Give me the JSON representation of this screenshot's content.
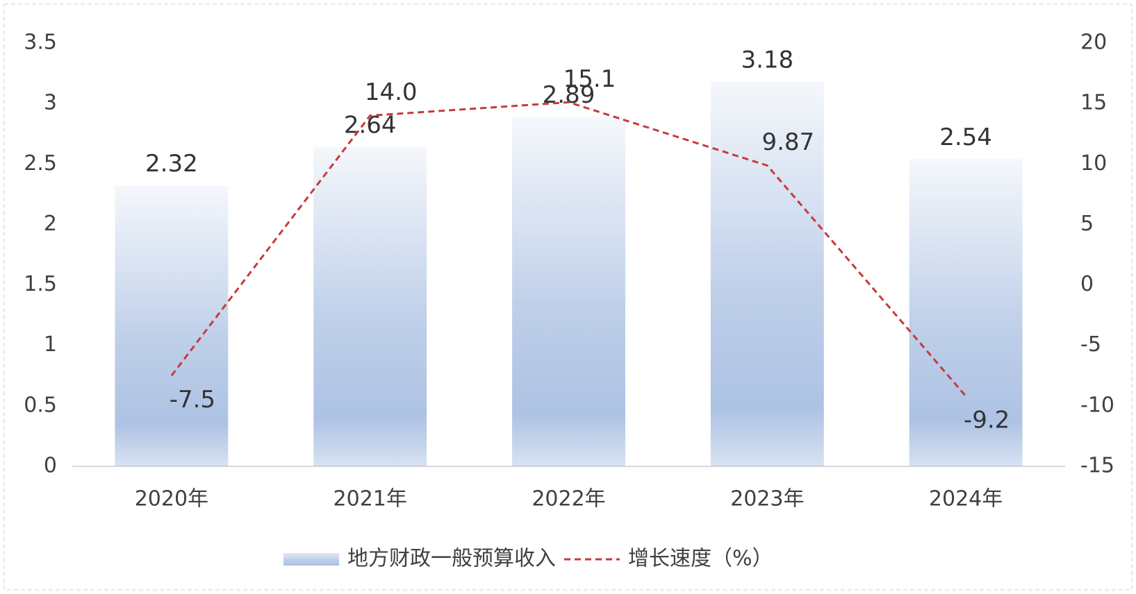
{
  "chart_data": {
    "type": "bar",
    "categories": [
      "2020年",
      "2021年",
      "2022年",
      "2023年",
      "2024年"
    ],
    "series": [
      {
        "name": "地方财政一般预算收入",
        "type": "bar",
        "color": "#a9bfe2",
        "values": [
          2.32,
          2.64,
          2.89,
          3.18,
          2.54
        ]
      },
      {
        "name": "增长速度（%）",
        "type": "line",
        "axis": "y2",
        "color": "#c8393b",
        "values": [
          -7.5,
          14.0,
          15.1,
          9.87,
          -9.2
        ],
        "value_labels": [
          "-7.5",
          "14.0",
          "15.1",
          "9.87",
          "-9.2"
        ]
      }
    ],
    "ylim": [
      0,
      3.5
    ],
    "yticks": [
      0,
      0.5,
      1,
      1.5,
      2,
      2.5,
      3,
      3.5
    ],
    "y2lim": [
      -15,
      20
    ],
    "y2ticks": [
      -15,
      -10,
      -5,
      0,
      5,
      10,
      15,
      20
    ],
    "legend": "bottom"
  }
}
